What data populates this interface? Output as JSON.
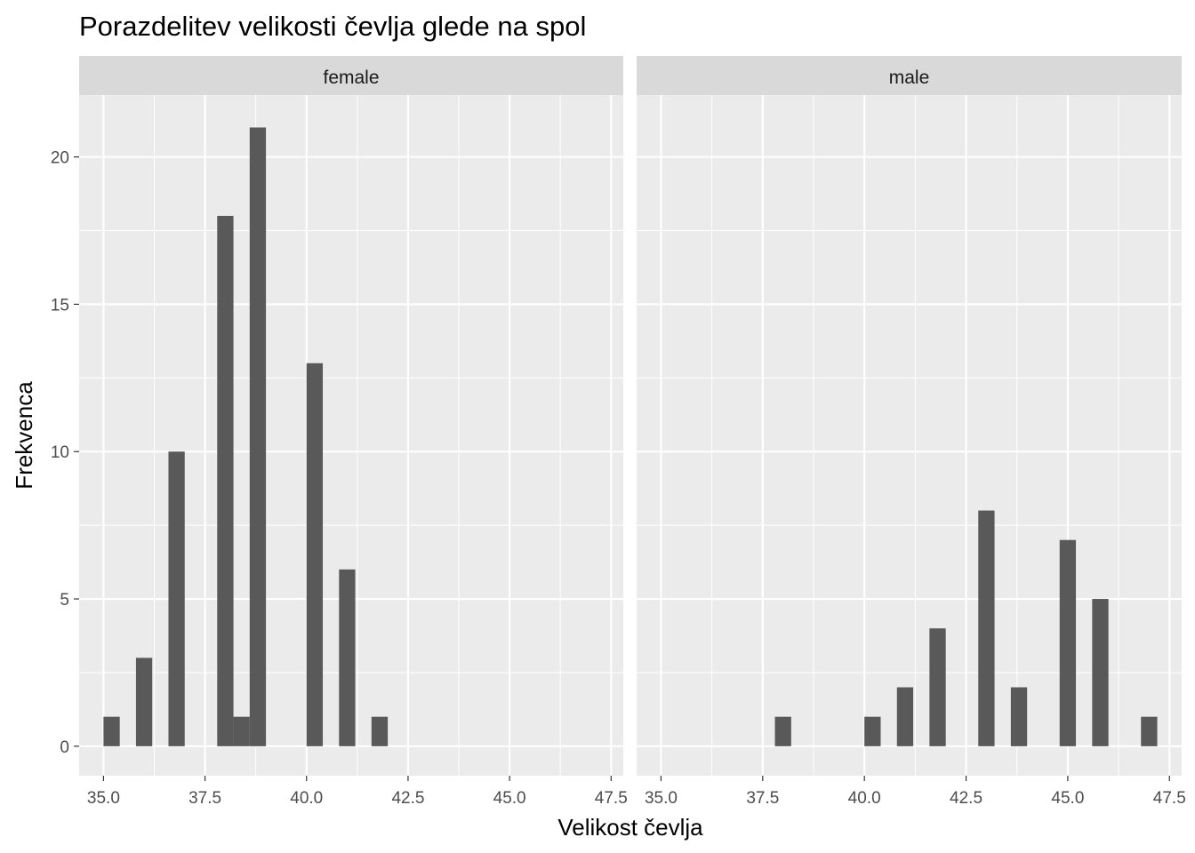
{
  "chart_data": {
    "type": "bar",
    "title": "Porazdelitev velikosti čevlja glede na spol",
    "xlabel": "Velikost čevlja",
    "ylabel": "Frekvenca",
    "xlim": [
      34.4,
      47.8
    ],
    "ylim": [
      -1,
      22.1
    ],
    "x_ticks": [
      "35.0",
      "37.5",
      "40.0",
      "42.5",
      "45.0",
      "47.5"
    ],
    "y_ticks": [
      "0",
      "5",
      "10",
      "15",
      "20"
    ],
    "bin_width": 0.4,
    "grid": true,
    "facets": [
      {
        "label": "female",
        "bins": [
          {
            "x": 35.2,
            "count": 1
          },
          {
            "x": 36.0,
            "count": 3
          },
          {
            "x": 36.8,
            "count": 10
          },
          {
            "x": 38.0,
            "count": 18
          },
          {
            "x": 38.4,
            "count": 1
          },
          {
            "x": 38.8,
            "count": 21
          },
          {
            "x": 40.2,
            "count": 13
          },
          {
            "x": 41.0,
            "count": 6
          },
          {
            "x": 41.8,
            "count": 1
          }
        ]
      },
      {
        "label": "male",
        "bins": [
          {
            "x": 38.0,
            "count": 1
          },
          {
            "x": 40.2,
            "count": 1
          },
          {
            "x": 41.0,
            "count": 2
          },
          {
            "x": 41.8,
            "count": 4
          },
          {
            "x": 43.0,
            "count": 8
          },
          {
            "x": 43.8,
            "count": 2
          },
          {
            "x": 45.0,
            "count": 7
          },
          {
            "x": 45.8,
            "count": 5
          },
          {
            "x": 47.0,
            "count": 1
          }
        ]
      }
    ]
  },
  "colors": {
    "panel_bg": "#ebebeb",
    "strip_bg": "#d9d9d9",
    "grid": "#ffffff",
    "bar": "#595959",
    "tick_text": "#4d4d4d"
  }
}
